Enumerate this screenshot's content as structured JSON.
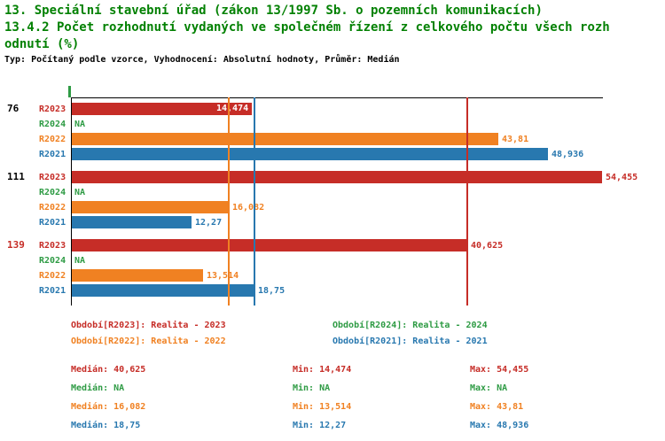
{
  "header": {
    "line1": "13. Speciální stavební úřad (zákon 13/1997 Sb. o pozemních komunikacích)",
    "line2": "13.4.2 Počet rozhodnutí vydaných ve společném řízení z celkového počtu všech rozh",
    "line3": "odnutí (%)",
    "meta": "Typ: Počítaný podle vzorce, Vyhodnocení: Absolutní hodnoty, Průměr: Medián"
  },
  "colors": {
    "title_green": "#038103",
    "r2023_red": "#c62d27",
    "r2024_green": "#2e9b44",
    "r2022_orange": "#f08122",
    "r2021_blue": "#2878af",
    "axis_black": "#000000"
  },
  "chart_data": {
    "type": "bar",
    "orientation": "horizontal",
    "value_format": "decimal-comma",
    "xlim": [
      0,
      54.6
    ],
    "grid": false,
    "legend_position": "bottom",
    "categories": [
      {
        "label": "76",
        "color": "#000000"
      },
      {
        "label": "111",
        "color": "#000000"
      },
      {
        "label": "139",
        "color": "#c62d27"
      }
    ],
    "series": [
      {
        "name": "R2023",
        "color": "#c62d27",
        "values": [
          14.474,
          54.455,
          40.625
        ],
        "labels": [
          "14,474",
          "54,455",
          "40,625"
        ],
        "label_inside": [
          true,
          false,
          false
        ],
        "median": 40.625
      },
      {
        "name": "R2024",
        "color": "#2e9b44",
        "values": [
          null,
          null,
          null
        ],
        "labels": [
          "NA",
          "NA",
          "NA"
        ],
        "label_inside": [
          false,
          false,
          false
        ],
        "median": null
      },
      {
        "name": "R2022",
        "color": "#f08122",
        "values": [
          43.81,
          16.082,
          13.514
        ],
        "labels": [
          "43,81",
          "16,082",
          "13,514"
        ],
        "label_inside": [
          false,
          false,
          false
        ],
        "median": 16.082
      },
      {
        "name": "R2021",
        "color": "#2878af",
        "values": [
          48.936,
          12.27,
          18.75
        ],
        "labels": [
          "48,936",
          "12,27",
          "18,75"
        ],
        "label_inside": [
          false,
          false,
          false
        ],
        "median": 18.75
      }
    ]
  },
  "legend": [
    {
      "text": "Období[R2023]: Realita - 2023",
      "color": "#c62d27"
    },
    {
      "text": "Období[R2024]: Realita - 2024",
      "color": "#2e9b44"
    },
    {
      "text": "Období[R2022]: Realita - 2022",
      "color": "#f08122"
    },
    {
      "text": "Období[R2021]: Realita - 2021",
      "color": "#2878af"
    }
  ],
  "stats": [
    {
      "color": "#c62d27",
      "median": "Medián: 40,625",
      "min": "Min: 14,474",
      "max": "Max: 54,455"
    },
    {
      "color": "#2e9b44",
      "median": "Medián: NA",
      "min": "Min: NA",
      "max": "Max: NA"
    },
    {
      "color": "#f08122",
      "median": "Medián: 16,082",
      "min": "Min: 13,514",
      "max": "Max: 43,81"
    },
    {
      "color": "#2878af",
      "median": "Medián: 18,75",
      "min": "Min: 12,27",
      "max": "Max: 48,936"
    }
  ]
}
